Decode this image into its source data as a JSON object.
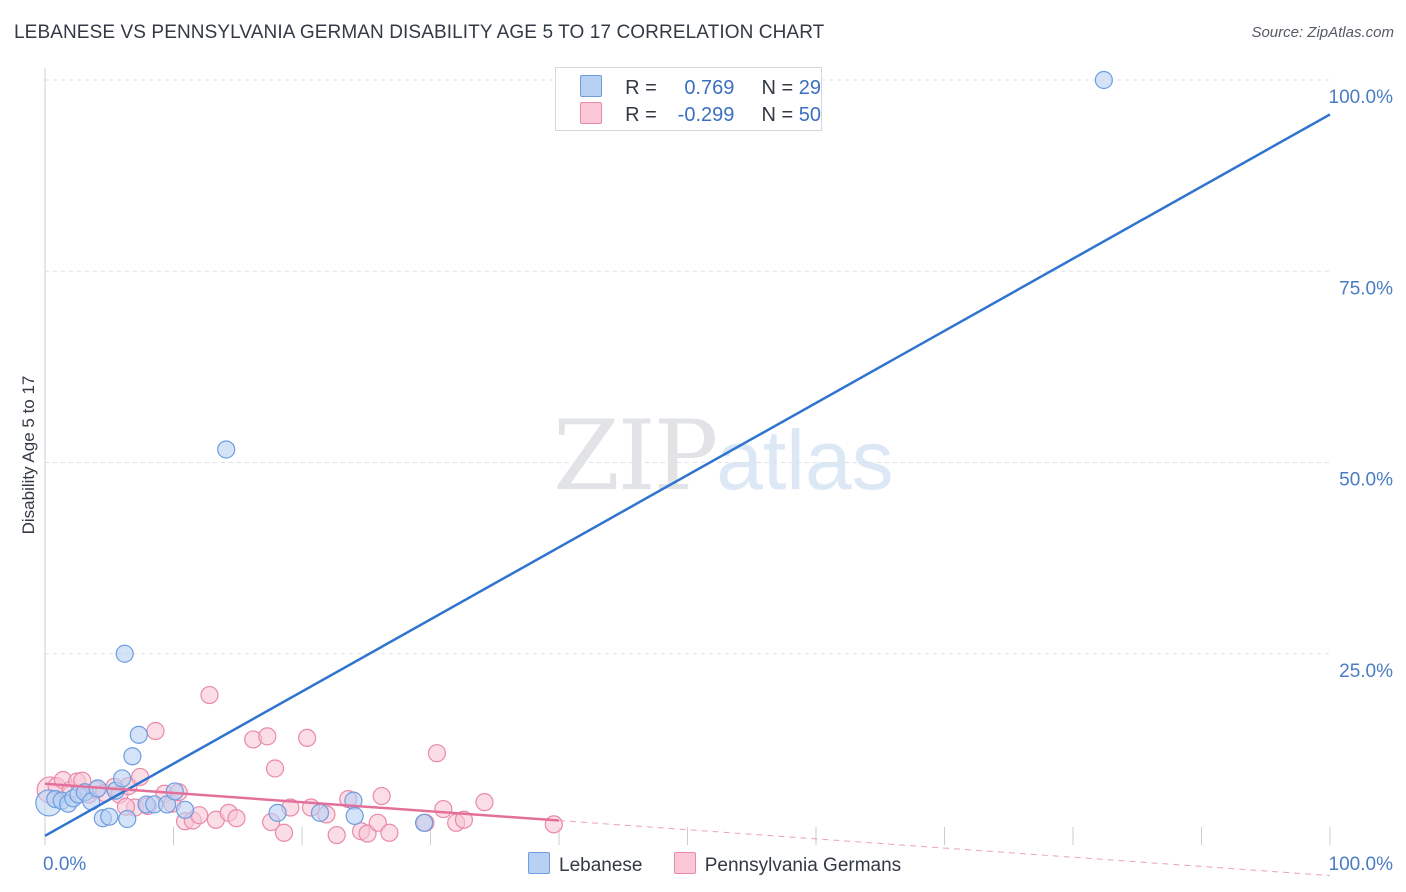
{
  "title": "LEBANESE VS PENNSYLVANIA GERMAN DISABILITY AGE 5 TO 17 CORRELATION CHART",
  "source": "Source: ZipAtlas.com",
  "watermark": {
    "zip": "ZIP",
    "atlas": "atlas"
  },
  "legend": {
    "rows": [
      {
        "r_label": "R = ",
        "r_value": " 0.769",
        "n_label": "N = ",
        "n_value": "29"
      },
      {
        "r_label": "R = ",
        "r_value": "-0.299",
        "n_label": "N = ",
        "n_value": "50"
      }
    ]
  },
  "bottom_legend": {
    "series1": "Lebanese",
    "series2": "Pennsylvania Germans"
  },
  "colors": {
    "blue_fill": "#b8d1f3",
    "blue_stroke": "#6d9de0",
    "blue_line": "#2f74cf",
    "pink_fill": "#f9c7d6",
    "pink_stroke": "#e98aaa",
    "pink_line": "#e3709a",
    "grid": "#dfe3e8",
    "tick_label": "#4a7cc4"
  },
  "chart_data": {
    "type": "scatter",
    "title": "LEBANESE VS PENNSYLVANIA GERMAN DISABILITY AGE 5 TO 17 CORRELATION CHART",
    "xlabel": "",
    "ylabel": "Disability Age 5 to 17",
    "xlim": [
      0,
      100
    ],
    "ylim": [
      0,
      100
    ],
    "x_tick_labels": [
      "0.0%",
      "100.0%"
    ],
    "y_ticks": [
      25,
      50,
      75,
      100
    ],
    "y_tick_labels": [
      "25.0%",
      "50.0%",
      "75.0%",
      "100.0%"
    ],
    "series": [
      {
        "name": "Lebanese",
        "r": 0.769,
        "n": 29,
        "trend": {
          "x": [
            0,
            100
          ],
          "y": [
            1.2,
            95.5
          ]
        },
        "points": [
          {
            "x": 0.3,
            "y": 5.5,
            "big": true
          },
          {
            "x": 0.8,
            "y": 6.0
          },
          {
            "x": 1.3,
            "y": 5.8
          },
          {
            "x": 1.8,
            "y": 5.4
          },
          {
            "x": 2.2,
            "y": 6.1
          },
          {
            "x": 2.6,
            "y": 6.6
          },
          {
            "x": 3.1,
            "y": 6.9
          },
          {
            "x": 3.6,
            "y": 5.7
          },
          {
            "x": 4.1,
            "y": 7.4
          },
          {
            "x": 4.5,
            "y": 3.5
          },
          {
            "x": 5.0,
            "y": 3.7
          },
          {
            "x": 5.5,
            "y": 7.1
          },
          {
            "x": 6.0,
            "y": 8.7
          },
          {
            "x": 6.4,
            "y": 3.4
          },
          {
            "x": 6.8,
            "y": 11.6
          },
          {
            "x": 7.3,
            "y": 14.4
          },
          {
            "x": 7.9,
            "y": 5.3
          },
          {
            "x": 8.5,
            "y": 5.3
          },
          {
            "x": 9.5,
            "y": 5.3
          },
          {
            "x": 6.2,
            "y": 25.0
          },
          {
            "x": 10.9,
            "y": 4.6
          },
          {
            "x": 14.1,
            "y": 51.7
          },
          {
            "x": 18.1,
            "y": 4.2
          },
          {
            "x": 21.4,
            "y": 4.2
          },
          {
            "x": 24.0,
            "y": 5.8
          },
          {
            "x": 24.1,
            "y": 3.8
          },
          {
            "x": 29.5,
            "y": 2.9
          },
          {
            "x": 82.4,
            "y": 100.0
          },
          {
            "x": 10.1,
            "y": 7.0
          }
        ]
      },
      {
        "name": "Pennsylvania Germans",
        "r": -0.299,
        "n": 50,
        "trend": {
          "x": [
            0,
            40
          ],
          "y": [
            8.0,
            3.2
          ]
        },
        "trend_ext": {
          "x": [
            40,
            100
          ],
          "y": [
            3.2,
            -4.0
          ]
        },
        "points": [
          {
            "x": 0.4,
            "y": 7.2,
            "big": true
          },
          {
            "x": 0.9,
            "y": 7.7
          },
          {
            "x": 1.4,
            "y": 8.5
          },
          {
            "x": 2.0,
            "y": 7.2
          },
          {
            "x": 2.5,
            "y": 8.3
          },
          {
            "x": 2.9,
            "y": 8.4
          },
          {
            "x": 3.4,
            "y": 6.6
          },
          {
            "x": 4.0,
            "y": 7.2
          },
          {
            "x": 4.6,
            "y": 6.8
          },
          {
            "x": 5.4,
            "y": 7.6
          },
          {
            "x": 5.8,
            "y": 6.6
          },
          {
            "x": 6.5,
            "y": 7.7
          },
          {
            "x": 7.0,
            "y": 4.9
          },
          {
            "x": 7.4,
            "y": 8.9
          },
          {
            "x": 8.0,
            "y": 5.1
          },
          {
            "x": 8.6,
            "y": 14.9
          },
          {
            "x": 9.3,
            "y": 6.7
          },
          {
            "x": 9.9,
            "y": 5.4
          },
          {
            "x": 10.4,
            "y": 6.9
          },
          {
            "x": 10.9,
            "y": 3.1
          },
          {
            "x": 11.5,
            "y": 3.2
          },
          {
            "x": 12.0,
            "y": 3.9
          },
          {
            "x": 12.8,
            "y": 19.6
          },
          {
            "x": 13.3,
            "y": 3.3
          },
          {
            "x": 14.3,
            "y": 4.2
          },
          {
            "x": 14.9,
            "y": 3.5
          },
          {
            "x": 16.2,
            "y": 13.8
          },
          {
            "x": 17.3,
            "y": 14.2
          },
          {
            "x": 17.6,
            "y": 3.0
          },
          {
            "x": 17.9,
            "y": 10.0
          },
          {
            "x": 18.6,
            "y": 1.6
          },
          {
            "x": 19.1,
            "y": 4.9
          },
          {
            "x": 20.4,
            "y": 14.0
          },
          {
            "x": 20.7,
            "y": 4.9
          },
          {
            "x": 21.9,
            "y": 4.0
          },
          {
            "x": 22.7,
            "y": 1.3
          },
          {
            "x": 23.6,
            "y": 6.0
          },
          {
            "x": 24.6,
            "y": 1.8
          },
          {
            "x": 25.1,
            "y": 1.5
          },
          {
            "x": 25.9,
            "y": 2.9
          },
          {
            "x": 26.2,
            "y": 6.4
          },
          {
            "x": 26.8,
            "y": 1.6
          },
          {
            "x": 29.6,
            "y": 2.9
          },
          {
            "x": 30.5,
            "y": 12.0
          },
          {
            "x": 31.0,
            "y": 4.7
          },
          {
            "x": 32.0,
            "y": 2.9
          },
          {
            "x": 32.6,
            "y": 3.3
          },
          {
            "x": 34.2,
            "y": 5.6
          },
          {
            "x": 39.6,
            "y": 2.7
          },
          {
            "x": 6.3,
            "y": 5.0
          }
        ]
      }
    ]
  }
}
